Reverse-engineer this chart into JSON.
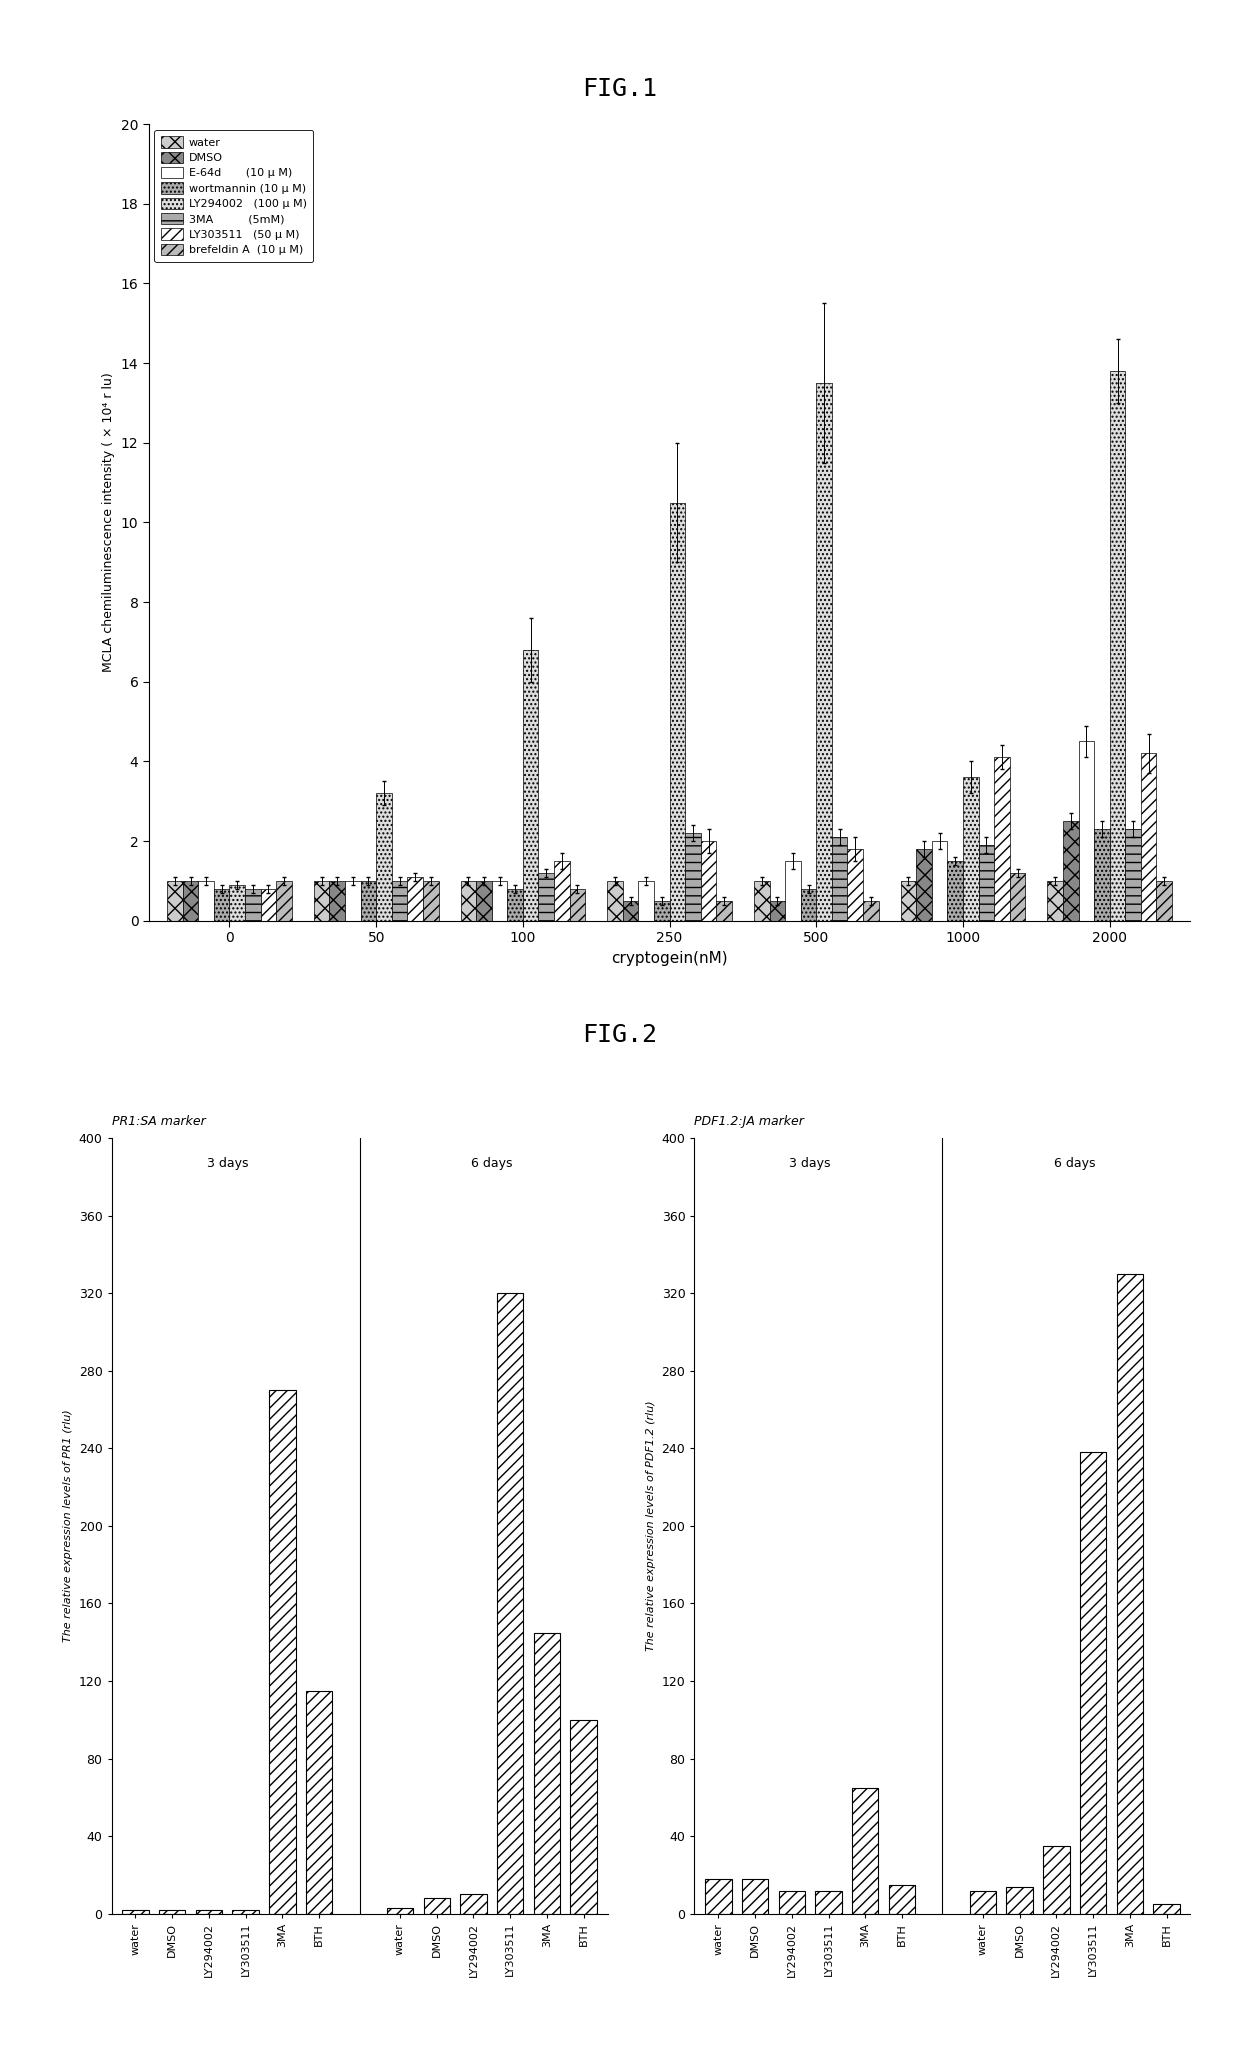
{
  "fig1": {
    "title": "FIG.1",
    "xlabel": "cryptogein(nM)",
    "ylabel": "MCLA chemiluminescence intensity ( × 10⁴ r lu)",
    "ylim": [
      0,
      20
    ],
    "yticks": [
      0,
      2,
      4,
      6,
      8,
      10,
      12,
      14,
      16,
      18,
      20
    ],
    "x_labels": [
      "0",
      "50",
      "100",
      "250",
      "500",
      "1000",
      "2000"
    ],
    "series": [
      {
        "name": "water",
        "hatch": "xx",
        "facecolor": "#cccccc",
        "edgecolor": "black"
      },
      {
        "name": "DMSO",
        "hatch": "xx",
        "facecolor": "#888888",
        "edgecolor": "black"
      },
      {
        "name": "E-64d",
        "hatch": "",
        "facecolor": "white",
        "edgecolor": "black"
      },
      {
        "name": "wortmannin",
        "hatch": "....",
        "facecolor": "#aaaaaa",
        "edgecolor": "black"
      },
      {
        "name": "LY294002",
        "hatch": "....",
        "facecolor": "#dddddd",
        "edgecolor": "black"
      },
      {
        "name": "3MA",
        "hatch": "--",
        "facecolor": "#aaaaaa",
        "edgecolor": "black"
      },
      {
        "name": "LY303511",
        "hatch": "///",
        "facecolor": "white",
        "edgecolor": "black"
      },
      {
        "name": "brefeldin A",
        "hatch": "///",
        "facecolor": "#bbbbbb",
        "edgecolor": "black"
      }
    ],
    "legend_labels": [
      "water",
      "DMSO",
      "E-64d       (10 μ M)",
      "wortmannin (10 μ M)",
      "LY294002   (100 μ M)",
      "3MA          (5mM)",
      "LY303511   (50 μ M)",
      "brefeldin A  (10 μ M)"
    ],
    "values": [
      [
        1.0,
        1.0,
        1.0,
        1.0,
        1.0,
        1.0,
        1.0
      ],
      [
        1.0,
        1.0,
        1.0,
        0.5,
        0.5,
        1.8,
        2.5
      ],
      [
        1.0,
        1.0,
        1.0,
        1.0,
        1.5,
        2.0,
        4.5
      ],
      [
        0.8,
        1.0,
        0.8,
        0.5,
        0.8,
        1.5,
        2.3
      ],
      [
        0.9,
        3.2,
        6.8,
        10.5,
        13.5,
        3.6,
        13.8
      ],
      [
        0.8,
        1.0,
        1.2,
        2.2,
        2.1,
        1.9,
        2.3
      ],
      [
        0.8,
        1.1,
        1.5,
        2.0,
        1.8,
        4.1,
        4.2
      ],
      [
        1.0,
        1.0,
        0.8,
        0.5,
        0.5,
        1.2,
        1.0
      ]
    ],
    "errors": [
      [
        0.1,
        0.1,
        0.1,
        0.1,
        0.1,
        0.1,
        0.1
      ],
      [
        0.1,
        0.1,
        0.1,
        0.1,
        0.1,
        0.2,
        0.2
      ],
      [
        0.1,
        0.1,
        0.1,
        0.1,
        0.2,
        0.2,
        0.4
      ],
      [
        0.1,
        0.1,
        0.1,
        0.1,
        0.1,
        0.1,
        0.2
      ],
      [
        0.1,
        0.3,
        0.8,
        1.5,
        2.0,
        0.4,
        0.8
      ],
      [
        0.1,
        0.1,
        0.1,
        0.2,
        0.2,
        0.2,
        0.2
      ],
      [
        0.1,
        0.1,
        0.2,
        0.3,
        0.3,
        0.3,
        0.5
      ],
      [
        0.1,
        0.1,
        0.1,
        0.1,
        0.1,
        0.1,
        0.1
      ]
    ]
  },
  "fig2": {
    "title": "FIG.2",
    "panels": [
      {
        "panel_label": "PR1:SA marker",
        "ylabel_italic": "PR1",
        "ylabel_prefix": "The relative expression levels of ",
        "ylabel_suffix": " (rlu)",
        "ylim": [
          0,
          400
        ],
        "yticks": [
          0,
          40,
          80,
          120,
          160,
          200,
          240,
          280,
          320,
          360,
          400
        ],
        "categories": [
          "water",
          "DMSO",
          "LY294002",
          "LY303511",
          "3MA",
          "BTH"
        ],
        "values_3days": [
          2,
          2,
          2,
          2,
          270,
          115
        ],
        "values_6days": [
          3,
          8,
          10,
          320,
          145,
          100
        ]
      },
      {
        "panel_label": "PDF1.2:JA marker",
        "ylabel_italic": "PDF1.2",
        "ylabel_prefix": "The relative expression levels of ",
        "ylabel_suffix": " (rlu)",
        "ylim": [
          0,
          400
        ],
        "yticks": [
          0,
          40,
          80,
          120,
          160,
          200,
          240,
          280,
          320,
          360,
          400
        ],
        "categories": [
          "water",
          "DMSO",
          "LY294002",
          "LY303511",
          "3MA",
          "BTH"
        ],
        "values_3days": [
          18,
          18,
          12,
          12,
          65,
          15
        ],
        "values_6days": [
          12,
          14,
          35,
          238,
          330,
          5
        ]
      }
    ]
  }
}
